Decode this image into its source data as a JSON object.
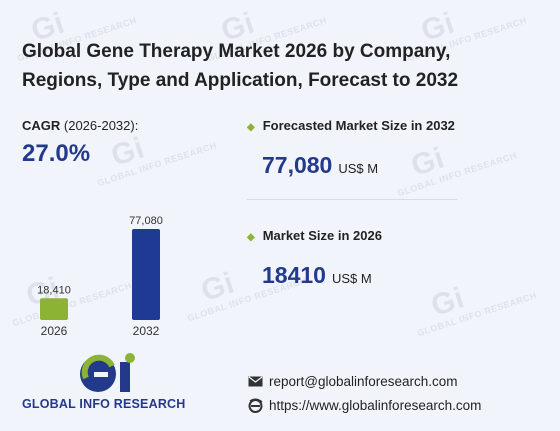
{
  "title_line1": "Global Gene Therapy Market 2026 by Company,",
  "title_line2": "Regions, Type and Application, Forecast to 2032",
  "cagr": {
    "label_prefix": "CAGR",
    "label_years": " (2026-2032):",
    "value": "27.0%"
  },
  "forecast": {
    "label": "Forecasted Market Size in 2032",
    "value": "77,080",
    "unit": "US$ M"
  },
  "current": {
    "label": "Market Size in 2026",
    "value": "18410",
    "unit": "US$ M"
  },
  "contact": {
    "email": "report@globalinforesearch.com",
    "website": "https://www.globalinforesearch.com"
  },
  "logo": {
    "text": "GLOBAL INFO RESEARCH",
    "mark": "Gi"
  },
  "watermark": "GLOBAL INFO RESEARCH",
  "colors": {
    "accent_blue": "#233a8b",
    "accent_green": "#8db335",
    "bar_2026": "#8db335",
    "bar_2032": "#1f3a93"
  },
  "chart_data": {
    "type": "bar",
    "categories": [
      "2026",
      "2032"
    ],
    "values": [
      18410,
      77080
    ],
    "value_labels": [
      "18,410",
      "77,080"
    ],
    "ylim": [
      0,
      77080
    ],
    "grid": false,
    "colors": [
      "#8db335",
      "#1f3a93"
    ]
  }
}
